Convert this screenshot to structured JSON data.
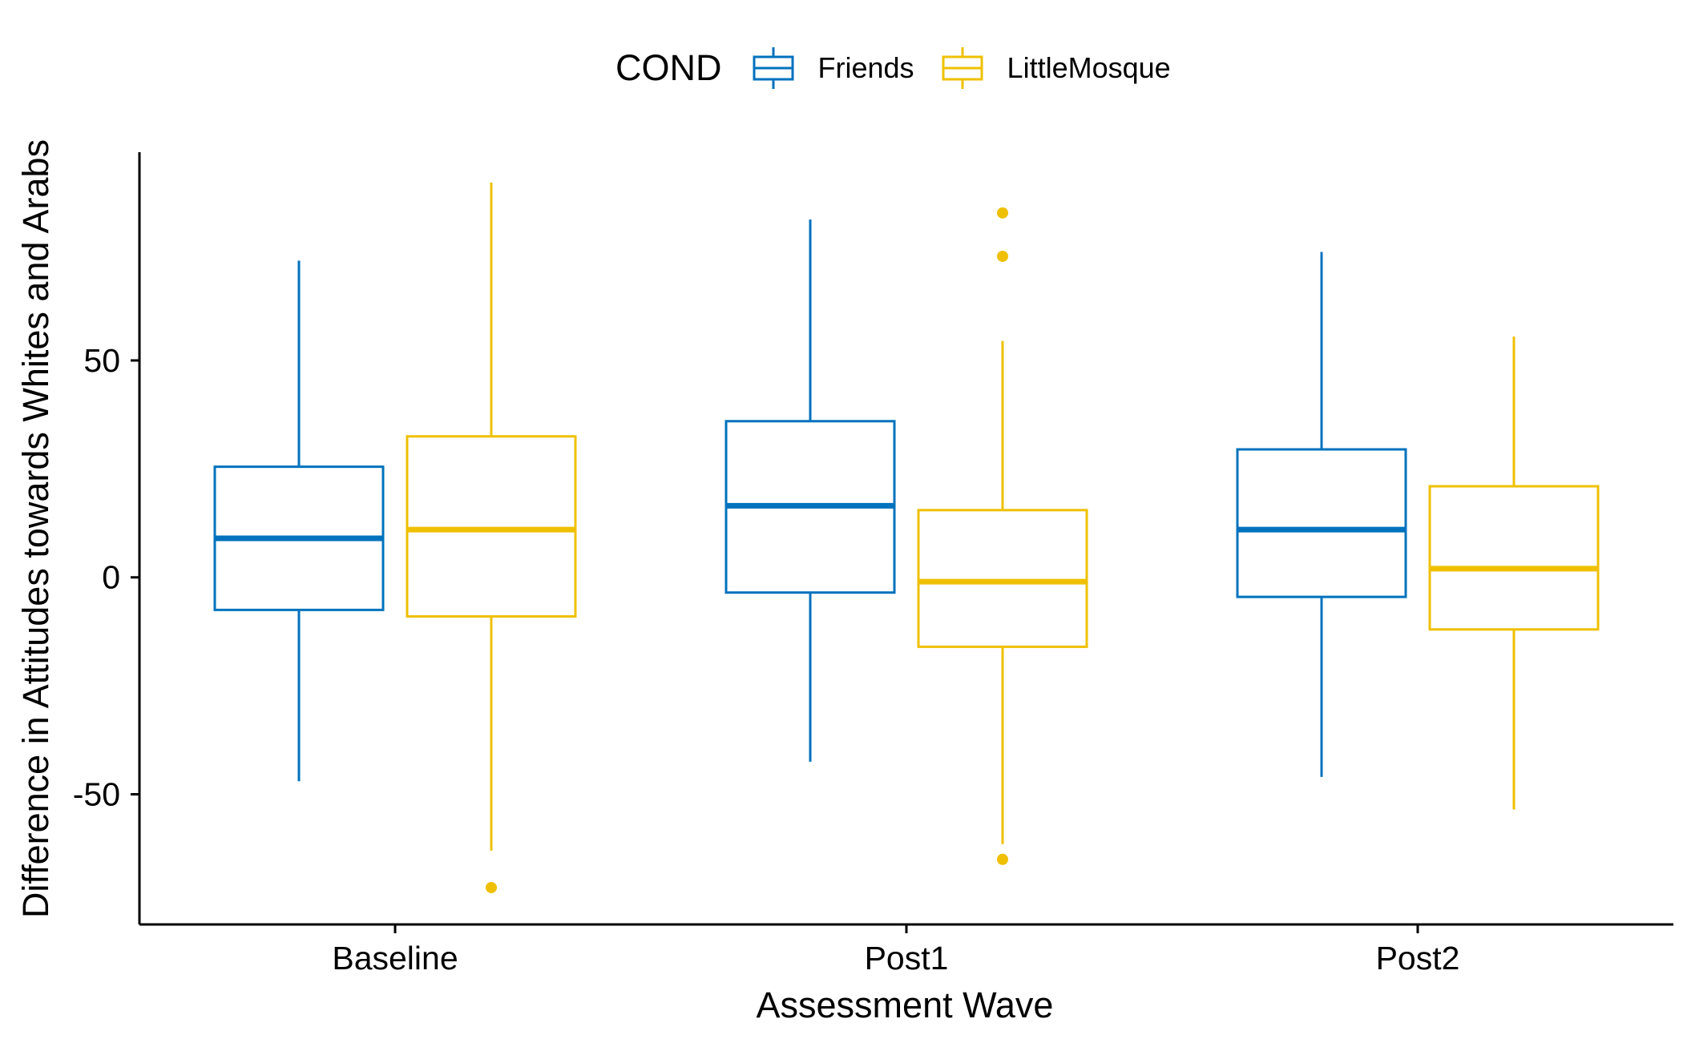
{
  "chart_data": {
    "type": "boxplot",
    "title": "",
    "xlabel": "Assessment Wave",
    "ylabel": "Difference in Attitudes towards Whites and Arabs",
    "categories": [
      "Baseline",
      "Post1",
      "Post2"
    ],
    "ylim": [
      -80,
      98
    ],
    "yticks": [
      -50,
      0,
      50
    ],
    "grid": false,
    "legend": {
      "title": "COND",
      "position": "top",
      "entries": [
        "Friends",
        "LittleMosque"
      ]
    },
    "series": [
      {
        "name": "Friends",
        "color": "#0072BD",
        "boxes": [
          {
            "category": "Baseline",
            "whisker_low": -47,
            "q1": -7.5,
            "median": 9,
            "q3": 25.5,
            "whisker_high": 73,
            "outliers": []
          },
          {
            "category": "Post1",
            "whisker_low": -42.5,
            "q1": -3.5,
            "median": 16.5,
            "q3": 36,
            "whisker_high": 82.5,
            "outliers": []
          },
          {
            "category": "Post2",
            "whisker_low": -46,
            "q1": -4.5,
            "median": 11,
            "q3": 29.5,
            "whisker_high": 75,
            "outliers": []
          }
        ]
      },
      {
        "name": "LittleMosque",
        "color": "#EFC000",
        "boxes": [
          {
            "category": "Baseline",
            "whisker_low": -63,
            "q1": -9,
            "median": 11,
            "q3": 32.5,
            "whisker_high": 91,
            "outliers": [
              -71.5
            ]
          },
          {
            "category": "Post1",
            "whisker_low": -61.5,
            "q1": -16,
            "median": -1,
            "q3": 15.5,
            "whisker_high": 54.5,
            "outliers": [
              84,
              74,
              -65
            ]
          },
          {
            "category": "Post2",
            "whisker_low": -53.5,
            "q1": -12,
            "median": 2,
            "q3": 21,
            "whisker_high": 55.5,
            "outliers": []
          }
        ]
      }
    ]
  }
}
